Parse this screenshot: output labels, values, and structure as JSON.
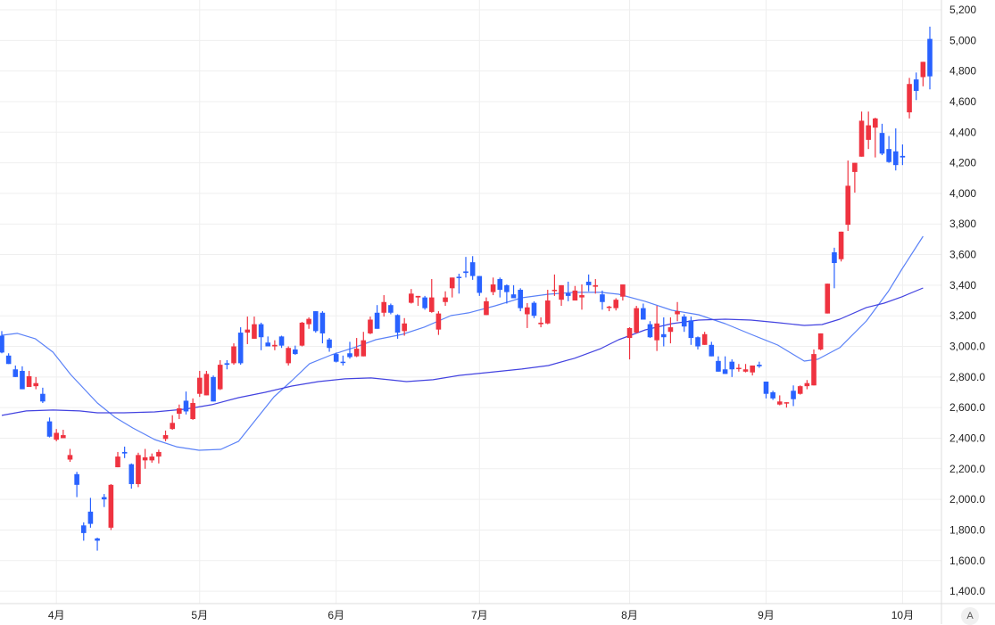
{
  "chart_data": {
    "type": "candlestick",
    "title": "",
    "ylim": [
      1350,
      5260
    ],
    "grid": true,
    "colors": {
      "up": "#ef3340",
      "down": "#2962ff",
      "ma_short": "#5b82f7",
      "ma_long": "#4343e0",
      "grid": "#efefef",
      "axis": "#dcdcdc"
    },
    "y_ticks": [
      {
        "value": 5200,
        "label": "5,200"
      },
      {
        "value": 5000,
        "label": "5,000"
      },
      {
        "value": 4800,
        "label": "4,800"
      },
      {
        "value": 4600,
        "label": "4,600"
      },
      {
        "value": 4400,
        "label": "4,400"
      },
      {
        "value": 4200,
        "label": "4,200"
      },
      {
        "value": 4000,
        "label": "4,000"
      },
      {
        "value": 3800,
        "label": "3,800"
      },
      {
        "value": 3600,
        "label": "3,600"
      },
      {
        "value": 3400,
        "label": "3,400"
      },
      {
        "value": 3200,
        "label": "3,200"
      },
      {
        "value": 3000,
        "label": "3,000.0"
      },
      {
        "value": 2800,
        "label": "2,800.0"
      },
      {
        "value": 2600,
        "label": "2,600.0"
      },
      {
        "value": 2400,
        "label": "2,400.0"
      },
      {
        "value": 2200,
        "label": "2,200.0"
      },
      {
        "value": 2000,
        "label": "2,000.0"
      },
      {
        "value": 1800,
        "label": "1,800.0"
      },
      {
        "value": 1600,
        "label": "1,600.0"
      },
      {
        "value": 1400,
        "label": "1,400.0"
      }
    ],
    "x_ticks": [
      {
        "index": 8,
        "label": "4月"
      },
      {
        "index": 29,
        "label": "5月"
      },
      {
        "index": 49,
        "label": "6月"
      },
      {
        "index": 70,
        "label": "7月"
      },
      {
        "index": 92,
        "label": "8月"
      },
      {
        "index": 112,
        "label": "9月"
      },
      {
        "index": 132,
        "label": "10月"
      }
    ],
    "ohlc_fields": [
      "open",
      "high",
      "low",
      "close"
    ],
    "candles": [
      [
        3070,
        3100,
        2955,
        2960
      ],
      [
        2940,
        2955,
        2885,
        2885
      ],
      [
        2850,
        2875,
        2800,
        2800
      ],
      [
        2840,
        2870,
        2720,
        2720
      ],
      [
        2735,
        2840,
        2735,
        2805
      ],
      [
        2740,
        2800,
        2720,
        2760
      ],
      [
        2690,
        2730,
        2630,
        2640
      ],
      [
        2510,
        2535,
        2405,
        2410
      ],
      [
        2390,
        2460,
        2380,
        2435
      ],
      [
        2400,
        2455,
        2400,
        2420
      ],
      [
        2260,
        2330,
        2245,
        2290
      ],
      [
        2165,
        2180,
        2015,
        2095
      ],
      [
        1830,
        1850,
        1730,
        1780
      ],
      [
        1920,
        2010,
        1815,
        1840
      ],
      [
        1745,
        1750,
        1665,
        1730
      ],
      [
        2015,
        2035,
        1950,
        2000
      ],
      [
        1815,
        2100,
        1800,
        2095
      ],
      [
        2210,
        2310,
        2210,
        2280
      ],
      [
        2310,
        2345,
        2270,
        2300
      ],
      [
        2230,
        2235,
        2070,
        2100
      ],
      [
        2100,
        2305,
        2080,
        2290
      ],
      [
        2255,
        2330,
        2200,
        2275
      ],
      [
        2255,
        2300,
        2240,
        2280
      ],
      [
        2280,
        2325,
        2235,
        2310
      ],
      [
        2395,
        2450,
        2380,
        2420
      ],
      [
        2460,
        2550,
        2455,
        2500
      ],
      [
        2560,
        2620,
        2525,
        2595
      ],
      [
        2645,
        2705,
        2555,
        2575
      ],
      [
        2525,
        2660,
        2520,
        2630
      ],
      [
        2690,
        2840,
        2670,
        2795
      ],
      [
        2680,
        2840,
        2680,
        2820
      ],
      [
        2800,
        2810,
        2640,
        2640
      ],
      [
        2720,
        2910,
        2715,
        2880
      ],
      [
        2890,
        2910,
        2850,
        2880
      ],
      [
        2890,
        3020,
        2880,
        3000
      ],
      [
        3090,
        3125,
        2880,
        2890
      ],
      [
        3090,
        3195,
        3015,
        3110
      ],
      [
        3050,
        3195,
        3050,
        3145
      ],
      [
        3145,
        3155,
        2975,
        3060
      ],
      [
        3025,
        3065,
        3000,
        3000
      ],
      [
        3000,
        3040,
        2975,
        3010
      ],
      [
        3065,
        3070,
        2990,
        3005
      ],
      [
        2890,
        3000,
        2875,
        2990
      ],
      [
        2980,
        3005,
        2945,
        2950
      ],
      [
        3005,
        3160,
        3000,
        3155
      ],
      [
        3145,
        3190,
        3115,
        3180
      ],
      [
        3230,
        3230,
        3090,
        3100
      ],
      [
        3220,
        3230,
        3020,
        3085
      ],
      [
        3045,
        3055,
        2965,
        2990
      ],
      [
        2950,
        2960,
        2895,
        2900
      ],
      [
        2900,
        2940,
        2875,
        2895
      ],
      [
        2955,
        3030,
        2920,
        2930
      ],
      [
        2935,
        3055,
        2930,
        2985
      ],
      [
        2935,
        3095,
        2935,
        3040
      ],
      [
        3085,
        3195,
        3080,
        3175
      ],
      [
        3220,
        3270,
        3115,
        3115
      ],
      [
        3220,
        3335,
        3195,
        3290
      ],
      [
        3270,
        3280,
        3210,
        3220
      ],
      [
        3205,
        3210,
        3050,
        3090
      ],
      [
        3100,
        3185,
        3070,
        3150
      ],
      [
        3285,
        3375,
        3280,
        3345
      ],
      [
        3320,
        3330,
        3265,
        3330
      ],
      [
        3320,
        3330,
        3240,
        3250
      ],
      [
        3225,
        3440,
        3220,
        3320
      ],
      [
        3110,
        3230,
        3075,
        3215
      ],
      [
        3290,
        3360,
        3265,
        3320
      ],
      [
        3380,
        3450,
        3320,
        3450
      ],
      [
        3455,
        3475,
        3345,
        3450
      ],
      [
        3490,
        3585,
        3450,
        3480
      ],
      [
        3550,
        3590,
        3435,
        3460
      ],
      [
        3460,
        3460,
        3330,
        3350
      ],
      [
        3205,
        3320,
        3205,
        3295
      ],
      [
        3355,
        3450,
        3335,
        3405
      ],
      [
        3440,
        3450,
        3320,
        3370
      ],
      [
        3400,
        3405,
        3280,
        3355
      ],
      [
        3340,
        3400,
        3315,
        3315
      ],
      [
        3370,
        3380,
        3230,
        3250
      ],
      [
        3210,
        3283,
        3120,
        3255
      ],
      [
        3285,
        3295,
        3185,
        3200
      ],
      [
        3145,
        3190,
        3125,
        3155
      ],
      [
        3150,
        3370,
        3145,
        3300
      ],
      [
        3365,
        3470,
        3330,
        3370
      ],
      [
        3305,
        3400,
        3265,
        3400
      ],
      [
        3347,
        3423,
        3295,
        3330
      ],
      [
        3300,
        3395,
        3300,
        3365
      ],
      [
        3320,
        3405,
        3240,
        3335
      ],
      [
        3423,
        3470,
        3360,
        3400
      ],
      [
        3390,
        3440,
        3345,
        3400
      ],
      [
        3340,
        3365,
        3240,
        3290
      ],
      [
        3255,
        3265,
        3230,
        3260
      ],
      [
        3250,
        3315,
        3235,
        3305
      ],
      [
        3325,
        3405,
        3300,
        3405
      ],
      [
        3055,
        3125,
        2915,
        3120
      ],
      [
        3090,
        3265,
        3085,
        3250
      ],
      [
        3250,
        3280,
        3175,
        3175
      ],
      [
        3145,
        3165,
        3055,
        3060
      ],
      [
        3040,
        3265,
        2970,
        3150
      ],
      [
        3080,
        3190,
        3000,
        3060
      ],
      [
        3095,
        3190,
        3020,
        3125
      ],
      [
        3210,
        3290,
        3165,
        3230
      ],
      [
        3195,
        3210,
        3095,
        3130
      ],
      [
        3170,
        3195,
        3010,
        3055
      ],
      [
        3060,
        3065,
        2980,
        3000
      ],
      [
        3010,
        3095,
        3010,
        3080
      ],
      [
        3010,
        3030,
        2935,
        2935
      ],
      [
        2905,
        2935,
        2835,
        2835
      ],
      [
        2850,
        2935,
        2820,
        2820
      ],
      [
        2900,
        2915,
        2800,
        2850
      ],
      [
        2855,
        2885,
        2835,
        2860
      ],
      [
        2835,
        2885,
        2830,
        2850
      ],
      [
        2830,
        2875,
        2810,
        2875
      ],
      [
        2880,
        2900,
        2860,
        2870
      ],
      [
        2770,
        2770,
        2660,
        2690
      ],
      [
        2700,
        2710,
        2650,
        2660
      ],
      [
        2620,
        2680,
        2615,
        2640
      ],
      [
        2630,
        2635,
        2600,
        2635
      ],
      [
        2710,
        2745,
        2610,
        2655
      ],
      [
        2690,
        2745,
        2685,
        2740
      ],
      [
        2740,
        2780,
        2720,
        2760
      ],
      [
        2745,
        2980,
        2745,
        2950
      ],
      [
        2980,
        3085,
        2975,
        3085
      ],
      [
        3215,
        3410,
        3215,
        3410
      ],
      [
        3615,
        3645,
        3380,
        3545
      ],
      [
        3570,
        3750,
        3555,
        3750
      ],
      [
        3795,
        4215,
        3755,
        4050
      ],
      [
        4140,
        4200,
        4005,
        4200
      ],
      [
        4240,
        4535,
        4240,
        4475
      ],
      [
        4350,
        4535,
        4290,
        4445
      ],
      [
        4430,
        4495,
        4235,
        4490
      ],
      [
        4395,
        4455,
        4250,
        4260
      ],
      [
        4290,
        4375,
        4200,
        4205
      ],
      [
        4275,
        4425,
        4150,
        4185
      ],
      [
        4245,
        4320,
        4185,
        4235
      ],
      [
        4530,
        4755,
        4490,
        4715
      ],
      [
        4745,
        4790,
        4610,
        4670
      ],
      [
        4760,
        4860,
        4700,
        4860
      ],
      [
        5010,
        5090,
        4680,
        4765
      ]
    ],
    "series": [
      {
        "name": "ma-short",
        "points": [
          [
            0,
            3073
          ],
          [
            2.3,
            3085
          ],
          [
            4.9,
            3050
          ],
          [
            7.5,
            2962
          ],
          [
            10.1,
            2816
          ],
          [
            14,
            2630
          ],
          [
            16.6,
            2537
          ],
          [
            19.2,
            2467
          ],
          [
            22.4,
            2391
          ],
          [
            25.6,
            2344
          ],
          [
            28.9,
            2321
          ],
          [
            32.1,
            2327
          ],
          [
            34.7,
            2380
          ],
          [
            37.3,
            2525
          ],
          [
            39.9,
            2671
          ],
          [
            42.5,
            2776
          ],
          [
            45.1,
            2887
          ],
          [
            48.3,
            2945
          ],
          [
            51.6,
            2992
          ],
          [
            54.8,
            3044
          ],
          [
            58.7,
            3079
          ],
          [
            61.9,
            3126
          ],
          [
            65.8,
            3201
          ],
          [
            68.4,
            3219
          ],
          [
            72.3,
            3265
          ],
          [
            76.2,
            3318
          ],
          [
            80.1,
            3341
          ],
          [
            83.9,
            3353
          ],
          [
            87.8,
            3353
          ],
          [
            90.4,
            3341
          ],
          [
            94.3,
            3294
          ],
          [
            98.2,
            3236
          ],
          [
            102.1,
            3207
          ],
          [
            106,
            3149
          ],
          [
            109.8,
            3079
          ],
          [
            113.7,
            3009
          ],
          [
            117.6,
            2904
          ],
          [
            119.6,
            2916
          ],
          [
            122.8,
            2992
          ],
          [
            126.7,
            3166
          ],
          [
            129.9,
            3359
          ],
          [
            131.9,
            3504
          ],
          [
            135,
            3720
          ]
        ]
      },
      {
        "name": "ma-long",
        "points": [
          [
            0,
            2549
          ],
          [
            3.6,
            2578
          ],
          [
            7.5,
            2584
          ],
          [
            11.4,
            2578
          ],
          [
            14,
            2566
          ],
          [
            17.9,
            2566
          ],
          [
            22.4,
            2572
          ],
          [
            26.9,
            2590
          ],
          [
            30.8,
            2619
          ],
          [
            34.7,
            2665
          ],
          [
            38.6,
            2700
          ],
          [
            42.5,
            2741
          ],
          [
            46.4,
            2770
          ],
          [
            50.3,
            2788
          ],
          [
            54.1,
            2794
          ],
          [
            56.7,
            2782
          ],
          [
            59.3,
            2770
          ],
          [
            63.2,
            2782
          ],
          [
            67.1,
            2811
          ],
          [
            71,
            2828
          ],
          [
            76.2,
            2852
          ],
          [
            80.1,
            2875
          ],
          [
            83.9,
            2922
          ],
          [
            87.8,
            2986
          ],
          [
            90.4,
            3044
          ],
          [
            94.3,
            3108
          ],
          [
            98.2,
            3149
          ],
          [
            102.1,
            3172
          ],
          [
            106,
            3178
          ],
          [
            109.8,
            3172
          ],
          [
            113.7,
            3155
          ],
          [
            117.6,
            3137
          ],
          [
            120.2,
            3143
          ],
          [
            122.8,
            3178
          ],
          [
            126.7,
            3254
          ],
          [
            129.3,
            3283
          ],
          [
            131.9,
            3324
          ],
          [
            135,
            3382
          ]
        ]
      }
    ]
  },
  "controls": {
    "auto_scale_label": "A"
  }
}
